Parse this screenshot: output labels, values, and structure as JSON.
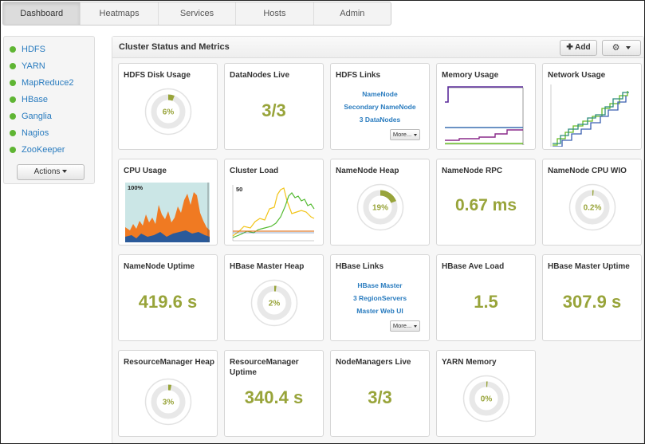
{
  "nav": {
    "tabs": [
      "Dashboard",
      "Heatmaps",
      "Services",
      "Hosts",
      "Admin"
    ],
    "active": "Dashboard"
  },
  "sidebar": {
    "services": [
      "HDFS",
      "YARN",
      "MapReduce2",
      "HBase",
      "Ganglia",
      "Nagios",
      "ZooKeeper"
    ],
    "status_color": "#5fb533",
    "actions_label": "Actions"
  },
  "main": {
    "title": "Cluster Status and Metrics",
    "add_label": "Add",
    "add_icon": "plus-icon",
    "settings_icon": "gear-icon"
  },
  "colors": {
    "value_green": "#98a43a",
    "link_blue": "#2a7cbf"
  },
  "widgets": {
    "hdfs_disk_usage": {
      "title": "HDFS Disk Usage",
      "label": "6%",
      "percent": 6
    },
    "datanodes_live": {
      "title": "DataNodes Live",
      "value": "3/3"
    },
    "hdfs_links": {
      "title": "HDFS Links",
      "links": [
        "NameNode",
        "Secondary NameNode",
        "3 DataNodes"
      ],
      "more_label": "More..."
    },
    "memory_usage": {
      "title": "Memory Usage"
    },
    "network_usage": {
      "title": "Network Usage"
    },
    "cpu_usage": {
      "title": "CPU Usage",
      "max_label": "100%"
    },
    "cluster_load": {
      "title": "Cluster Load",
      "max_label": "50"
    },
    "namenode_heap": {
      "title": "NameNode Heap",
      "label": "19%",
      "percent": 19
    },
    "namenode_rpc": {
      "title": "NameNode RPC",
      "value": "0.67 ms"
    },
    "namenode_cpu_wio": {
      "title": "NameNode CPU WIO",
      "label": "0.2%",
      "percent": 0.2
    },
    "namenode_uptime": {
      "title": "NameNode Uptime",
      "value": "419.6 s"
    },
    "hbase_master_heap": {
      "title": "HBase Master Heap",
      "label": "2%",
      "percent": 2
    },
    "hbase_links": {
      "title": "HBase Links",
      "links": [
        "HBase Master",
        "3 RegionServers",
        "Master Web UI"
      ],
      "more_label": "More..."
    },
    "hbase_ave_load": {
      "title": "HBase Ave Load",
      "value": "1.5"
    },
    "hbase_master_uptime": {
      "title": "HBase Master Uptime",
      "value": "307.9 s"
    },
    "resourcemanager_heap": {
      "title": "ResourceManager Heap",
      "label": "3%",
      "percent": 3
    },
    "resourcemanager_uptime": {
      "title": "ResourceManager Uptime",
      "value": "340.4 s"
    },
    "nodemanagers_live": {
      "title": "NodeManagers Live",
      "value": "3/3"
    },
    "yarn_memory": {
      "title": "YARN Memory",
      "label": "0%",
      "percent": 0
    }
  }
}
